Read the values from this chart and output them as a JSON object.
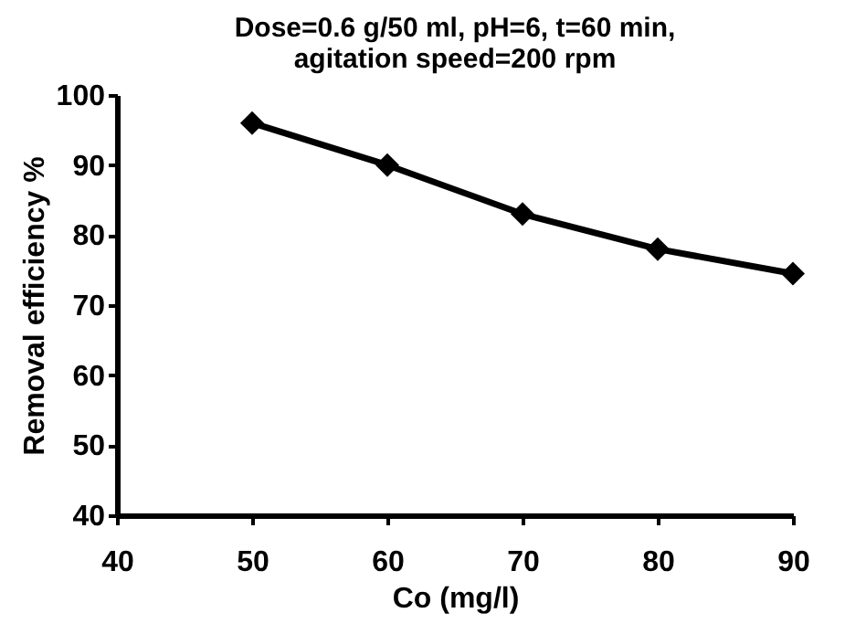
{
  "chart_data": {
    "type": "line",
    "title": "Dose=0.6 g/50 ml, pH=6, t=60 min,\nagitation speed=200 rpm",
    "xlabel": "Co (mg/l)",
    "ylabel": "Removal efficiency %",
    "x": [
      50,
      60,
      70,
      80,
      90
    ],
    "series": [
      {
        "color": "#000000",
        "values": [
          96,
          90,
          83,
          78,
          74.5
        ]
      }
    ],
    "xlim": [
      40,
      90
    ],
    "xticks": [
      40,
      50,
      60,
      70,
      80,
      90
    ],
    "ylim": [
      40,
      100
    ],
    "yticks": [
      40,
      50,
      60,
      70,
      80,
      90,
      100
    ],
    "grid": false,
    "marker": "diamond",
    "line_style": "solid"
  }
}
